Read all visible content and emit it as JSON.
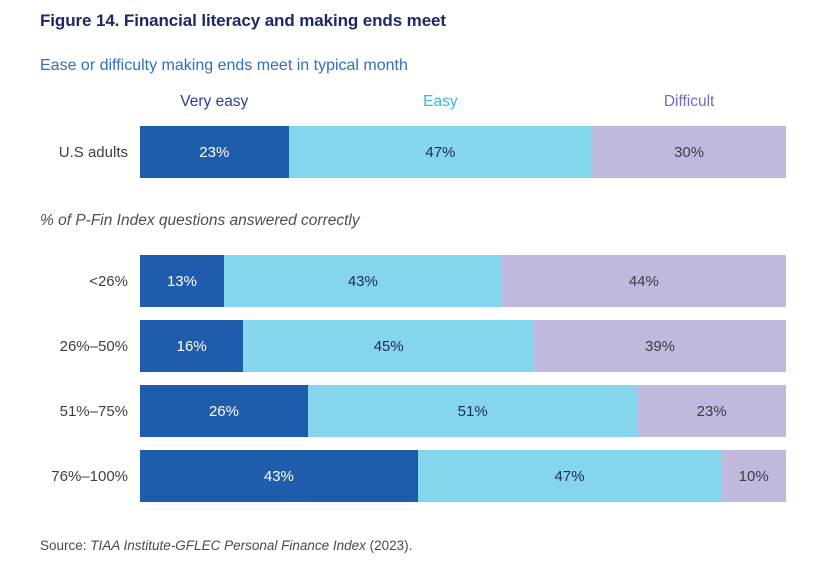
{
  "figure": {
    "title": "Figure 14. Financial literacy and making ends meet",
    "source_prefix": "Source: ",
    "source_italic": "TIAA Institute-GFLEC Personal Finance Index",
    "source_suffix": " (2023)."
  },
  "chart_data": {
    "type": "bar",
    "orientation": "horizontal-stacked",
    "value_suffix": "%",
    "xlim": [
      0,
      100
    ],
    "legend": [
      {
        "label": "Very easy",
        "color": "#1f5cac",
        "text_color": "#24409a"
      },
      {
        "label": "Easy",
        "color": "#85d5ec",
        "text_color": "#38b7e6"
      },
      {
        "label": "Difficult",
        "color": "#bfbadd",
        "text_color": "#7a67b5"
      }
    ],
    "segment_label_colors": [
      "#ffffff",
      "#1e2a5e",
      "#3b3b43"
    ],
    "top_chart": {
      "title": "Ease or difficulty making ends meet in typical month",
      "rows": [
        {
          "label": "U.S adults",
          "values": [
            23,
            47,
            30
          ]
        }
      ]
    },
    "bottom_chart": {
      "title": "% of P-Fin Index questions answered correctly",
      "rows": [
        {
          "label": "<26%",
          "values": [
            13,
            43,
            44
          ]
        },
        {
          "label": "26%–50%",
          "values": [
            16,
            45,
            39
          ]
        },
        {
          "label": "51%–75%",
          "values": [
            26,
            51,
            23
          ]
        },
        {
          "label": "76%–100%",
          "values": [
            43,
            47,
            10
          ]
        }
      ]
    }
  }
}
